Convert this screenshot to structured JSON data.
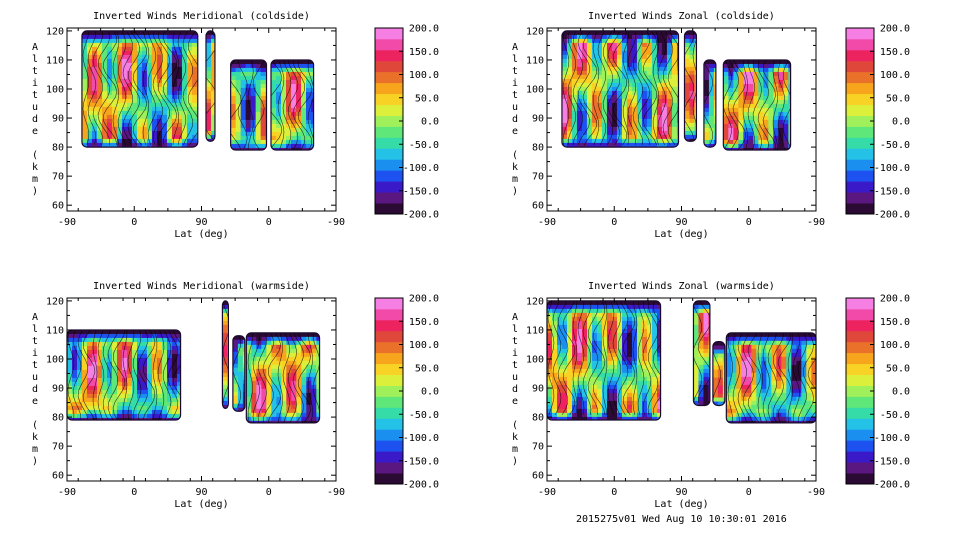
{
  "colors": {
    "colorbar": [
      "#2b0a33",
      "#5a1780",
      "#3a19c8",
      "#1d52f0",
      "#1b8fef",
      "#23c2e6",
      "#36dca8",
      "#5fe77a",
      "#9ff05a",
      "#dcef3a",
      "#f8d225",
      "#f6a51d",
      "#e9712a",
      "#e0473b",
      "#ed2360",
      "#f24aa8",
      "#f57fe3"
    ],
    "contour_line": "#000000"
  },
  "colorbar_ticks": [
    "200.0",
    "150.0",
    "100.0",
    "50.0",
    "0.0",
    "-50.0",
    "-100.0",
    "-150.0",
    "-200.0"
  ],
  "chart_data": [
    {
      "id": "mer_cold",
      "type": "heatmap",
      "title": "Inverted Winds Meridional (coldside)",
      "xlabel": "Lat (deg)",
      "ylabel": "Altitude (km)",
      "xticks": [
        "-90",
        "0",
        "90",
        "0",
        "-90"
      ],
      "yticks": [
        "60",
        "70",
        "80",
        "90",
        "100",
        "110",
        "120"
      ],
      "ylim": [
        58,
        121
      ],
      "clim": [
        -200,
        200
      ],
      "color_levels": [
        "200.0",
        "150.0",
        "100.0",
        "50.0",
        "0.0",
        "-50.0",
        "-100.0",
        "-150.0",
        "-200.0"
      ],
      "regions": [
        {
          "x": [
            -70,
            85
          ],
          "y": [
            80,
            120
          ]
        },
        {
          "x": [
            96,
            108
          ],
          "y": [
            82,
            120
          ]
        },
        {
          "x": [
            129,
            177
          ],
          "y": [
            79,
            110
          ]
        },
        {
          "x": [
            183,
            240
          ],
          "y": [
            79,
            110
          ]
        }
      ]
    },
    {
      "id": "zon_cold",
      "type": "heatmap",
      "title": "Inverted Winds Zonal (coldside)",
      "xlabel": "Lat (deg)",
      "ylabel": "Altitude (km)",
      "xticks": [
        "-90",
        "0",
        "90",
        "0",
        "-90"
      ],
      "yticks": [
        "60",
        "70",
        "80",
        "90",
        "100",
        "110",
        "120"
      ],
      "ylim": [
        58,
        121
      ],
      "clim": [
        -200,
        200
      ],
      "color_levels": [
        "200.0",
        "150.0",
        "100.0",
        "50.0",
        "0.0",
        "-50.0",
        "-100.0",
        "-150.0",
        "-200.0"
      ],
      "regions": [
        {
          "x": [
            -70,
            86
          ],
          "y": [
            80,
            120
          ]
        },
        {
          "x": [
            94,
            110
          ],
          "y": [
            82,
            120
          ]
        },
        {
          "x": [
            120,
            136
          ],
          "y": [
            80,
            110
          ]
        },
        {
          "x": [
            146,
            236
          ],
          "y": [
            79,
            110
          ]
        }
      ]
    },
    {
      "id": "mer_warm",
      "type": "heatmap",
      "title": "Inverted Winds Meridional (warmside)",
      "xlabel": "Lat (deg)",
      "ylabel": "Altitude (km)",
      "xticks": [
        "-90",
        "0",
        "90",
        "0",
        "-90"
      ],
      "yticks": [
        "60",
        "70",
        "80",
        "90",
        "100",
        "110",
        "120"
      ],
      "ylim": [
        58,
        121
      ],
      "clim": [
        -200,
        200
      ],
      "color_levels": [
        "200.0",
        "150.0",
        "100.0",
        "50.0",
        "0.0",
        "-50.0",
        "-100.0",
        "-150.0",
        "-200.0"
      ],
      "regions": [
        {
          "x": [
            -90,
            62
          ],
          "y": [
            79,
            110
          ]
        },
        {
          "x": [
            118,
            126
          ],
          "y": [
            83,
            120
          ]
        },
        {
          "x": [
            132,
            148
          ],
          "y": [
            82,
            108
          ]
        },
        {
          "x": [
            150,
            248
          ],
          "y": [
            78,
            109
          ]
        }
      ]
    },
    {
      "id": "zon_warm",
      "type": "heatmap",
      "title": "Inverted Winds Zonal (warmside)",
      "xlabel": "Lat (deg)",
      "ylabel": "Altitude (km)",
      "xticks": [
        "-90",
        "0",
        "90",
        "0",
        "-90"
      ],
      "yticks": [
        "60",
        "70",
        "80",
        "90",
        "100",
        "110",
        "120"
      ],
      "ylim": [
        58,
        121
      ],
      "clim": [
        -200,
        200
      ],
      "color_levels": [
        "200.0",
        "150.0",
        "100.0",
        "50.0",
        "0.0",
        "-50.0",
        "-100.0",
        "-150.0",
        "-200.0"
      ],
      "regions": [
        {
          "x": [
            -90,
            62
          ],
          "y": [
            79,
            120
          ]
        },
        {
          "x": [
            106,
            128
          ],
          "y": [
            84,
            120
          ]
        },
        {
          "x": [
            132,
            148
          ],
          "y": [
            84,
            106
          ]
        },
        {
          "x": [
            150,
            270
          ],
          "y": [
            78,
            109
          ]
        }
      ]
    }
  ],
  "footer": "2015275v01 Wed Aug 10 10:30:01 2016"
}
